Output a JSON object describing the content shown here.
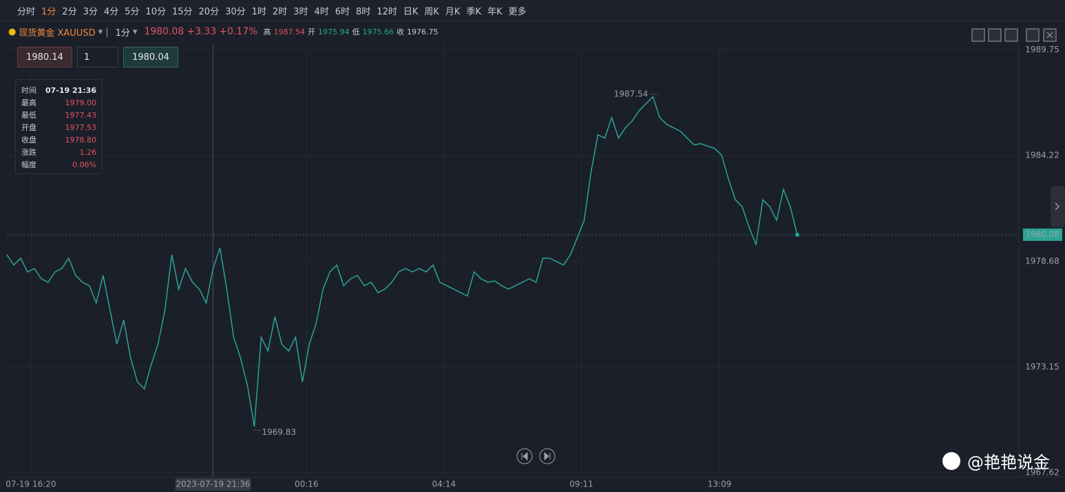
{
  "toolbar": {
    "intervals": [
      "分时",
      "1分",
      "2分",
      "3分",
      "4分",
      "5分",
      "10分",
      "15分",
      "20分",
      "30分",
      "1时",
      "2时",
      "3时",
      "4时",
      "6时",
      "8时",
      "12时",
      "日K",
      "周K",
      "月K",
      "季K",
      "年K",
      "更多"
    ],
    "active_index": 1
  },
  "symbol": {
    "name": "现货黄金 XAUUSD",
    "interval": "1分",
    "price": "1980.08",
    "change": "+3.33",
    "change_pct": "+0.17%",
    "high_label": "高",
    "high": "1987.54",
    "open_label": "开",
    "open": "1975.94",
    "low_label": "低",
    "low": "1975.66",
    "close_label": "收",
    "close": "1976.75"
  },
  "order": {
    "sell": "1980.14",
    "qty": "1",
    "buy": "1980.04"
  },
  "tooltip": {
    "rows": [
      [
        "时间",
        "07-19 21:36"
      ],
      [
        "最高",
        "1979.00"
      ],
      [
        "最低",
        "1977.43"
      ],
      [
        "开盘",
        "1977.53"
      ],
      [
        "收盘",
        "1978.80"
      ],
      [
        "涨跌",
        "1.26"
      ],
      [
        "幅度",
        "0.06%"
      ]
    ]
  },
  "watermark": "@艳艳说金",
  "chart_data": {
    "type": "line",
    "color": "#2aa593",
    "up_color": "#e0545f",
    "down_color": "#2aa593",
    "prev_close": 1976.75,
    "values": [
      1979.03,
      1978.49,
      1978.85,
      1978.13,
      1978.31,
      1977.77,
      1977.59,
      1978.13,
      1978.31,
      1978.85,
      1977.95,
      1977.59,
      1977.41,
      1976.51,
      1977.95,
      1976.15,
      1974.35,
      1975.61,
      1973.63,
      1972.37,
      1972.01,
      1973.27,
      1974.35,
      1976.15,
      1979.03,
      1977.23,
      1978.31,
      1977.59,
      1977.23,
      1976.51,
      1978.31,
      1979.39,
      1977.23,
      1974.71,
      1973.63,
      1972.19,
      1970.03,
      1974.71,
      1973.99,
      1975.79,
      1974.35,
      1973.99,
      1974.71,
      1972.37,
      1974.35,
      1975.43,
      1977.23,
      1978.13,
      1978.49,
      1977.41,
      1977.77,
      1977.95,
      1977.41,
      1977.59,
      1977.05,
      1977.23,
      1977.59,
      1978.13,
      1978.31,
      1978.13,
      1978.31,
      1978.13,
      1978.49,
      1977.59,
      1977.41,
      1977.23,
      1977.05,
      1976.87,
      1978.13,
      1977.77,
      1977.59,
      1977.66,
      1977.41,
      1977.23,
      1977.41,
      1977.59,
      1977.77,
      1977.59,
      1978.85,
      1978.85,
      1978.67,
      1978.49,
      1979.03,
      1979.93,
      1980.83,
      1983.35,
      1985.32,
      1985.14,
      1986.22,
      1985.14,
      1985.68,
      1986.04,
      1986.58,
      1986.94,
      1987.3,
      1986.22,
      1985.86,
      1985.68,
      1985.5,
      1985.14,
      1984.78,
      1984.85,
      1984.71,
      1984.6,
      1984.24,
      1982.99,
      1981.91,
      1981.55,
      1980.47,
      1979.57,
      1981.91,
      1981.55,
      1980.83,
      1982.45,
      1981.55,
      1980.08
    ],
    "ylim": [
      1967.4,
      1990.1
    ],
    "yticks": [
      1989.75,
      1984.22,
      1978.68,
      1973.15,
      1967.62
    ],
    "xlim": [
      0,
      115
    ],
    "xticks": [
      {
        "value": 3.5,
        "label": "07-19 16:20"
      },
      {
        "value": 43.6,
        "label": "00:16"
      },
      {
        "value": 63.6,
        "label": "04:14"
      },
      {
        "value": 83.6,
        "label": "09:11"
      },
      {
        "value": 103.7,
        "label": "13:09"
      }
    ],
    "crosshair": {
      "x": 30,
      "label": "2023-07-19 21:36"
    },
    "annotations": [
      {
        "x": 94.7,
        "value": 1987.54
      },
      {
        "x": 35.9,
        "value": 1969.83
      }
    ],
    "grid": true
  }
}
